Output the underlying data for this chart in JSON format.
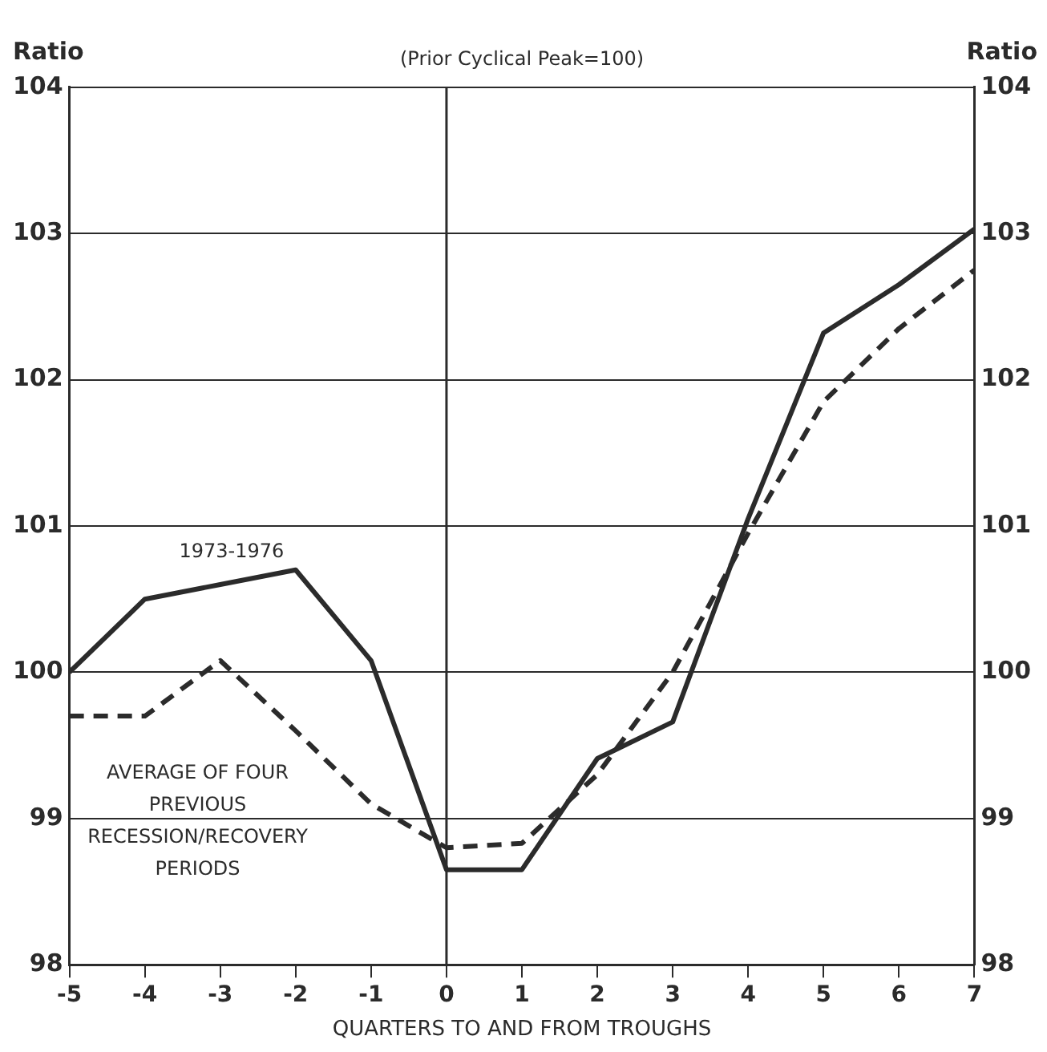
{
  "chart_data": {
    "type": "line",
    "subtitle": "(Prior Cyclical Peak=100)",
    "xlabel": "QUARTERS TO AND FROM TROUGHS",
    "ylabel": "Ratio",
    "y2label": "Ratio",
    "x": [
      -5,
      -4,
      -3,
      -2,
      -1,
      0,
      1,
      2,
      3,
      4,
      5,
      6,
      7
    ],
    "series": [
      {
        "name": "1973-1976",
        "color": "#2b2b2b",
        "line_style": "solid",
        "values": [
          100,
          100.5,
          100.6,
          100.7,
          100.08,
          98.65,
          98.65,
          99.41,
          99.66,
          101.05,
          102.32,
          102.65,
          103.03
        ]
      },
      {
        "name": "AVERAGE OF FOUR PREVIOUS RECESSION/RECOVERY PERIODS",
        "color": "#2b2b2b",
        "line_style": "dashed",
        "values": [
          99.7,
          99.7,
          100.08,
          99.6,
          99.1,
          98.8,
          98.83,
          99.3,
          100,
          100.95,
          101.85,
          102.35,
          102.75
        ]
      }
    ],
    "xlim": [
      -5,
      7
    ],
    "xticks": [
      -5,
      -4,
      -3,
      -2,
      -1,
      0,
      1,
      2,
      3,
      4,
      5,
      6,
      7
    ],
    "ylim": [
      98,
      104
    ],
    "yticks": [
      98,
      99,
      100,
      101,
      102,
      103,
      104
    ],
    "y2lim": [
      98,
      104
    ],
    "y2ticks": [
      98,
      99,
      100,
      101,
      102,
      103,
      104
    ],
    "ref_lines": [
      {
        "axis": "x",
        "value": 0,
        "color": "#2b2b2b"
      }
    ],
    "grid": "y",
    "legend": false,
    "marker": "none"
  }
}
